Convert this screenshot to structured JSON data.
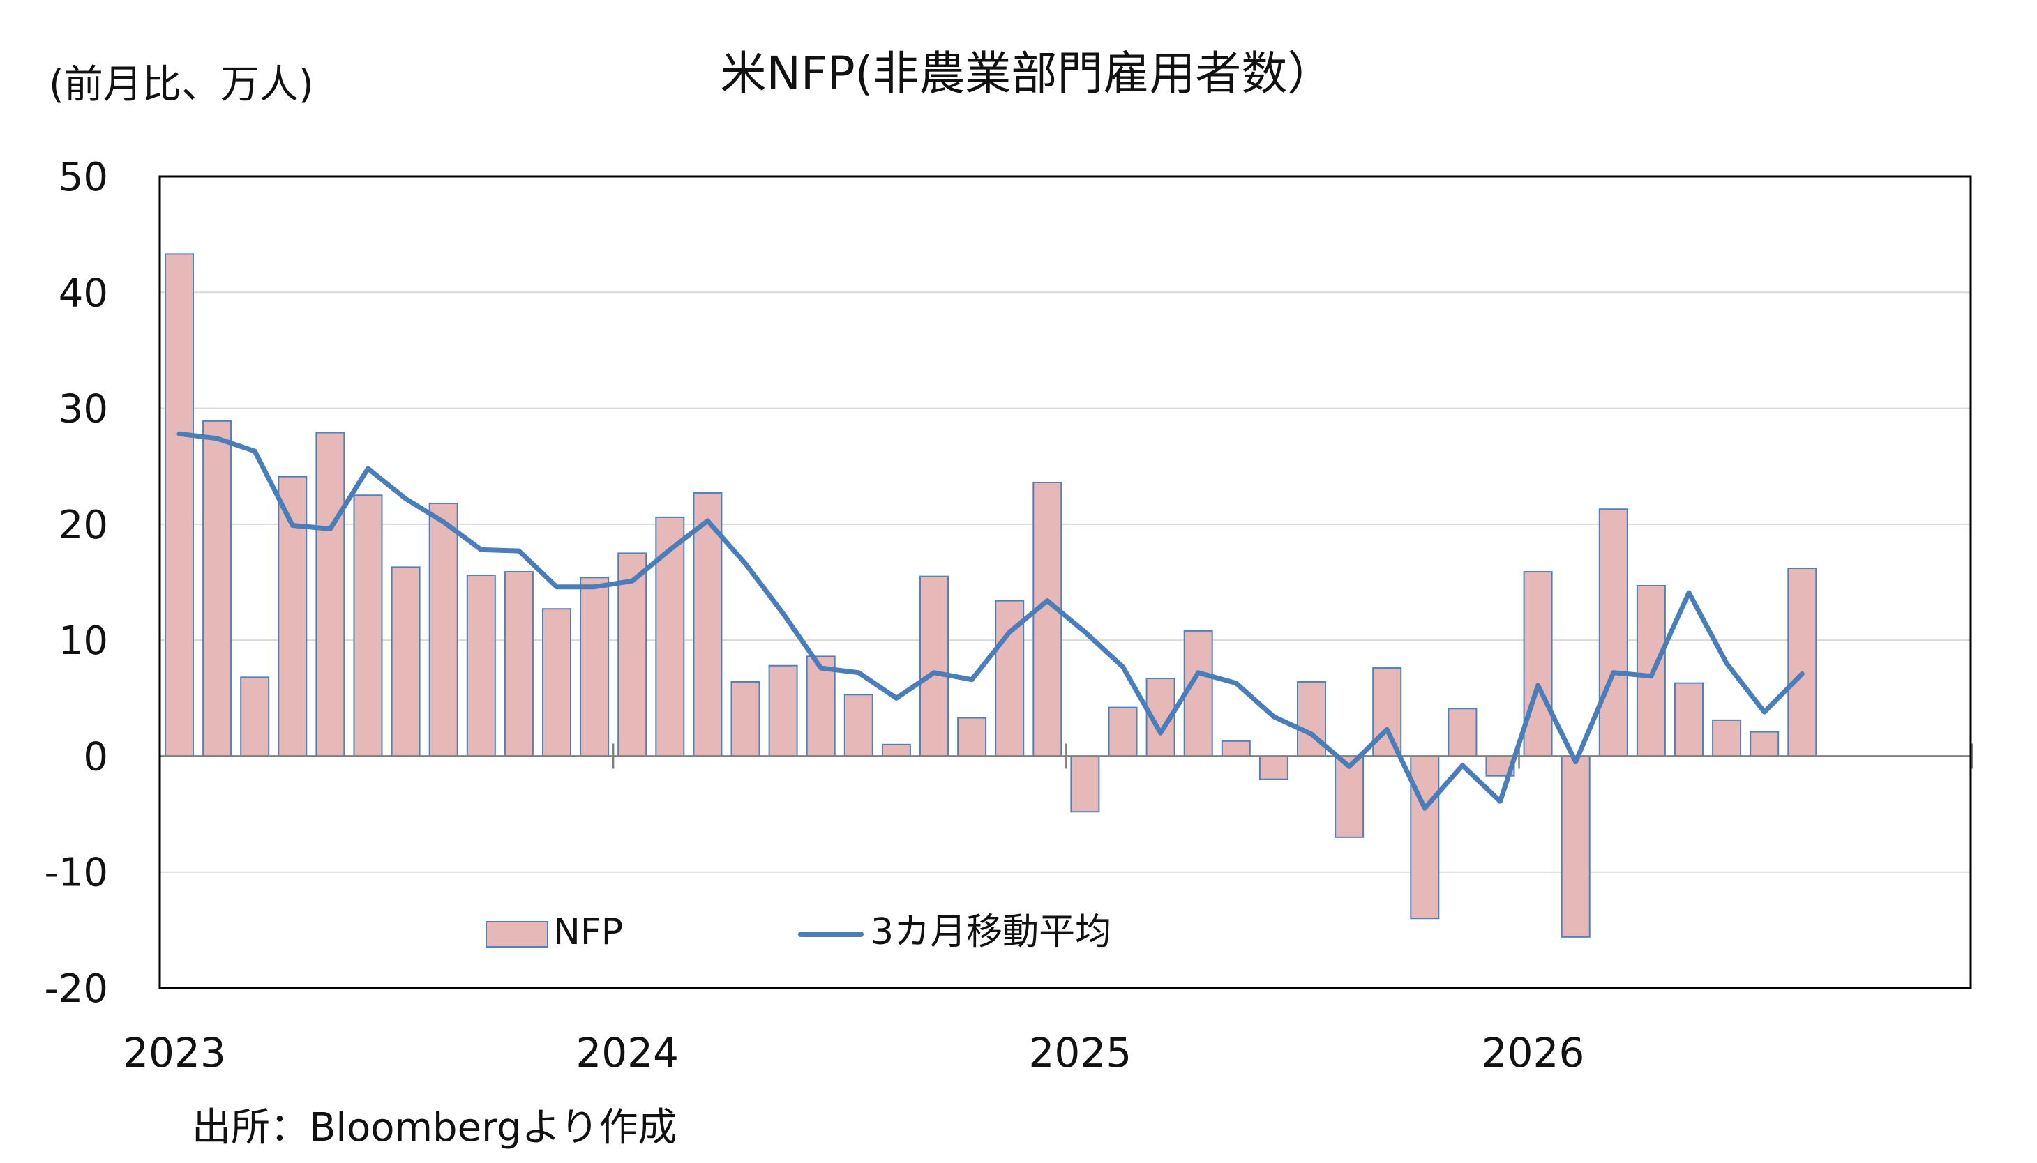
{
  "chart_data": {
    "type": "bar",
    "title": "米NFP(非農業部門雇用者数）",
    "ylabel": "(前月比、万人)",
    "xlabel": "",
    "source": "出所：Bloombergより作成",
    "ylim": [
      -20,
      50
    ],
    "yticks": [
      "50",
      "40",
      "30",
      "20",
      "10",
      "0",
      "-10",
      "-20"
    ],
    "ytick_values": [
      50,
      40,
      30,
      20,
      10,
      0,
      -10,
      -20
    ],
    "year_labels": [
      "2023",
      "2024",
      "2025",
      "2026"
    ],
    "year_start_index": [
      0,
      12,
      24,
      36
    ],
    "grid": true,
    "legend_position": "bottom-left inside plot",
    "colors": {
      "bar_fill": "#E6B9B8",
      "bar_stroke": "#4F81BD",
      "line": "#4A7EBB",
      "grid": "#D9D9D9"
    },
    "series": [
      {
        "name": "NFP",
        "kind": "bar",
        "values": [
          43.3,
          28.9,
          6.8,
          24.1,
          27.9,
          22.5,
          16.3,
          21.8,
          15.6,
          15.9,
          12.7,
          15.4,
          17.5,
          20.6,
          22.7,
          6.4,
          7.8,
          8.6,
          5.3,
          1.0,
          15.5,
          3.3,
          13.4,
          23.6,
          -4.8,
          4.2,
          6.7,
          10.8,
          1.3,
          -2.0,
          6.4,
          -7.0,
          7.6,
          -14.0,
          4.1,
          -1.7,
          15.9,
          -15.6,
          21.3,
          14.7,
          6.3,
          3.1,
          2.1,
          16.2
        ]
      },
      {
        "name": "3カ月移動平均",
        "kind": "line",
        "values": [
          27.8,
          27.4,
          26.3,
          19.9,
          19.6,
          24.8,
          22.2,
          20.2,
          17.8,
          17.7,
          14.6,
          14.6,
          15.1,
          17.8,
          20.3,
          16.6,
          12.3,
          7.6,
          7.2,
          5.0,
          7.2,
          6.6,
          10.7,
          13.4,
          10.7,
          7.7,
          2.0,
          7.2,
          6.3,
          3.4,
          1.9,
          -0.9,
          2.3,
          -4.5,
          -0.8,
          -3.9,
          6.1,
          -0.5,
          7.2,
          6.9,
          14.1,
          8.0,
          3.8,
          7.1
        ]
      }
    ]
  }
}
